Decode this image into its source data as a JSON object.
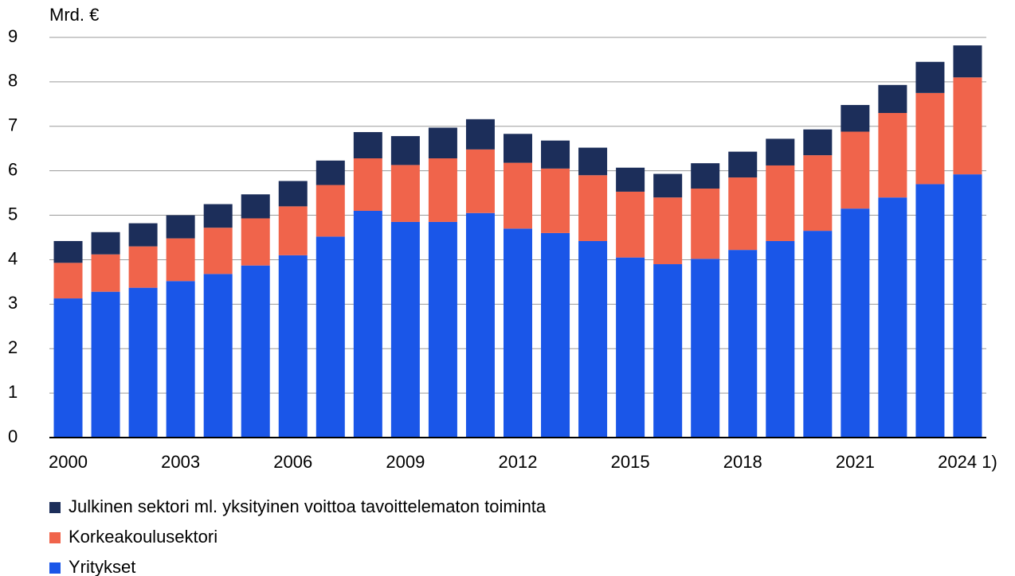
{
  "chart_data": {
    "type": "stacked_bar",
    "ylabel": "Mrd. €",
    "categories": [
      "2000",
      null,
      null,
      "2003",
      null,
      null,
      "2006",
      null,
      null,
      "2009",
      null,
      null,
      "2012",
      null,
      null,
      "2015",
      null,
      null,
      "2018",
      null,
      null,
      "2021",
      null,
      null,
      "2024 1)"
    ],
    "series": [
      {
        "name": "Yritykset",
        "color": "#1a56e8",
        "values": [
          3.13,
          3.28,
          3.37,
          3.52,
          3.68,
          3.87,
          4.1,
          4.52,
          5.1,
          4.85,
          4.85,
          5.05,
          4.7,
          4.6,
          4.42,
          4.05,
          3.9,
          4.02,
          4.22,
          4.42,
          4.65,
          5.15,
          5.4,
          5.7,
          5.92
        ]
      },
      {
        "name": "Korkeakoulusektori",
        "color": "#f0644b",
        "values": [
          0.8,
          0.84,
          0.93,
          0.96,
          1.04,
          1.06,
          1.1,
          1.16,
          1.18,
          1.28,
          1.43,
          1.43,
          1.48,
          1.45,
          1.48,
          1.48,
          1.5,
          1.58,
          1.63,
          1.7,
          1.7,
          1.73,
          1.9,
          2.05,
          2.18
        ]
      },
      {
        "name": "Julkinen sektori ml. yksityinen voittoa tavoittelematon toiminta",
        "color": "#1c2e5a",
        "values": [
          0.49,
          0.5,
          0.52,
          0.52,
          0.53,
          0.54,
          0.57,
          0.55,
          0.59,
          0.65,
          0.69,
          0.68,
          0.65,
          0.63,
          0.62,
          0.54,
          0.53,
          0.57,
          0.58,
          0.6,
          0.58,
          0.6,
          0.63,
          0.7,
          0.72
        ]
      }
    ],
    "ylim": [
      0,
      9
    ],
    "yticks": [
      0,
      1,
      2,
      3,
      4,
      5,
      6,
      7,
      8,
      9
    ],
    "grid": true,
    "legend": "bottom"
  }
}
